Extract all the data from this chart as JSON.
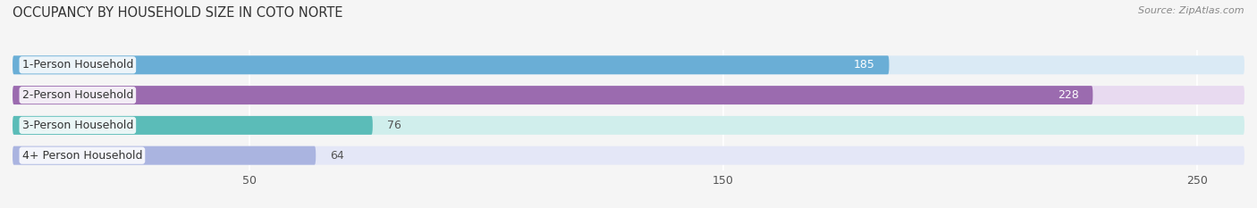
{
  "title": "OCCUPANCY BY HOUSEHOLD SIZE IN COTO NORTE",
  "source": "Source: ZipAtlas.com",
  "categories": [
    "1-Person Household",
    "2-Person Household",
    "3-Person Household",
    "4+ Person Household"
  ],
  "values": [
    185,
    228,
    76,
    64
  ],
  "bar_colors": [
    "#6aaed6",
    "#9b6baf",
    "#5bbcb8",
    "#aab4e0"
  ],
  "bar_bg_colors": [
    "#daeaf5",
    "#e8daf0",
    "#d0eeec",
    "#e4e7f7"
  ],
  "label_colors_inside": [
    "#ffffff",
    "#ffffff",
    "#555555",
    "#555555"
  ],
  "xlim": [
    0,
    260
  ],
  "xticks": [
    50,
    150,
    250
  ],
  "figsize": [
    14.06,
    2.33
  ],
  "dpi": 100,
  "title_fontsize": 10.5,
  "bar_height": 0.62,
  "bar_label_fontsize": 9,
  "category_fontsize": 9,
  "source_fontsize": 8,
  "bg_color": "#f5f5f5"
}
